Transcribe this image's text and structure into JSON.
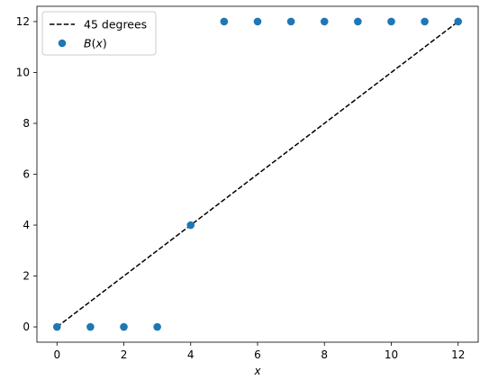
{
  "chart_data": {
    "type": "scatter",
    "title": "",
    "xlabel": "x",
    "ylabel": "",
    "xlim": [
      -0.6,
      12.6
    ],
    "ylim": [
      -0.6,
      12.6
    ],
    "xticks": [
      0,
      2,
      4,
      6,
      8,
      10,
      12
    ],
    "yticks": [
      0,
      2,
      4,
      6,
      8,
      10,
      12
    ],
    "grid": false,
    "legend_position": "top-left",
    "series": [
      {
        "name": "45 degrees",
        "kind": "line",
        "style": "dashed",
        "color": "#000000",
        "x": [
          0,
          12
        ],
        "y": [
          0,
          12
        ]
      },
      {
        "name": "B(x)",
        "kind": "scatter",
        "color": "#1f77b4",
        "x": [
          0,
          1,
          2,
          3,
          4,
          5,
          6,
          7,
          8,
          9,
          10,
          11,
          12
        ],
        "y": [
          0,
          0,
          0,
          0,
          4,
          12,
          12,
          12,
          12,
          12,
          12,
          12,
          12
        ]
      }
    ]
  }
}
